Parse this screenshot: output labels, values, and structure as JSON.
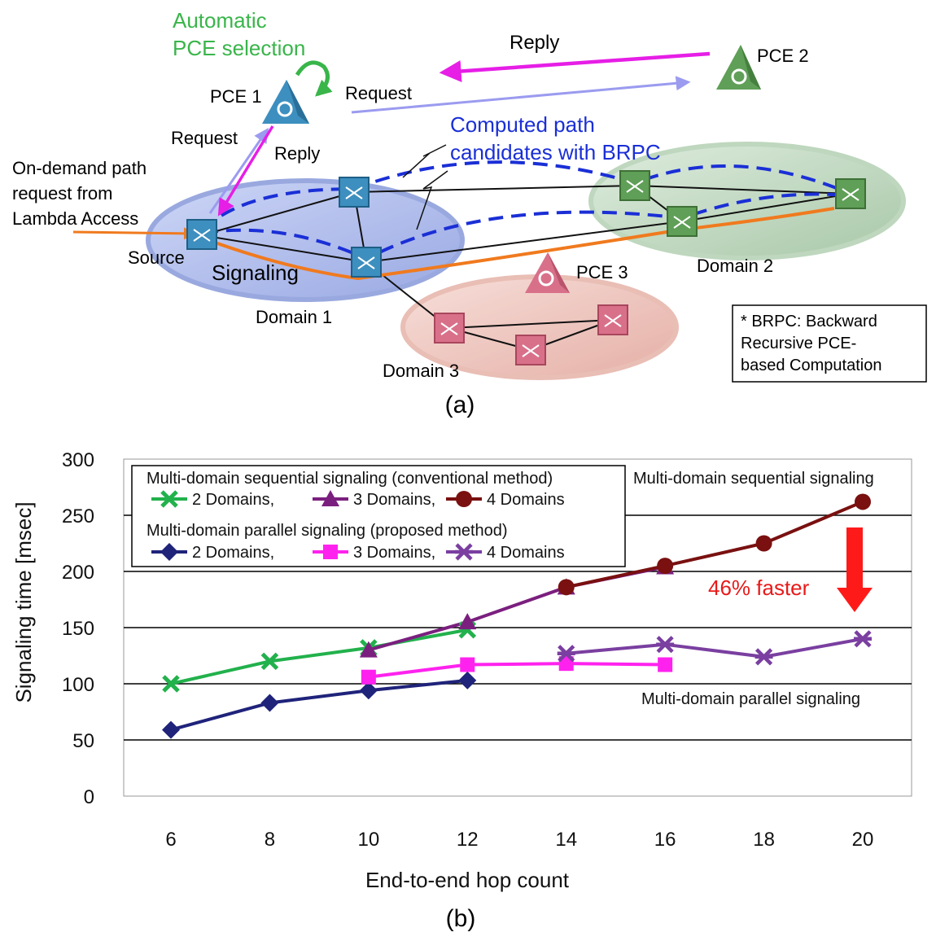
{
  "panel_a": {
    "caption": "(a)",
    "auto_selection": [
      "Automatic",
      "PCE selection"
    ],
    "pce1": "PCE 1",
    "pce2": "PCE 2",
    "pce3": "PCE 3",
    "reply_top": "Reply",
    "request_top": "Request",
    "request_left": "Request",
    "reply_left": "Reply",
    "computed": [
      "Computed path",
      "candidates with BRPC"
    ],
    "on_demand": [
      "On-demand path",
      "request from",
      "Lambda Access"
    ],
    "source": "Source",
    "signaling": "Signaling",
    "domain1": "Domain 1",
    "domain2": "Domain 2",
    "domain3": "Domain 3",
    "note": [
      "* BRPC: Backward",
      "Recursive PCE-",
      "based Computation"
    ],
    "colors": {
      "domain1": "#a9b7ea",
      "domain2": "#b6d2b6",
      "domain3": "#eab7b0",
      "pce1": "#3d8fbf",
      "pce2": "#5f9f57",
      "pce3": "#d9708a",
      "auto": "#39b54a",
      "reply": "#e61ee6",
      "request": "#9b9bf0",
      "candidate": "#1a2fd6",
      "signal_path": "#f07a1e"
    }
  },
  "panel_b": {
    "caption": "(b)",
    "annotations": {
      "sequential": "Multi-domain sequential signaling",
      "parallel": "Multi-domain parallel signaling",
      "faster": "46% faster"
    },
    "legend": {
      "group1": "Multi-domain sequential signaling (conventional method)",
      "group2": "Multi-domain parallel signaling (proposed method)",
      "entries_seq": [
        "2 Domains,",
        "3 Domains,",
        "4 Domains"
      ],
      "entries_par": [
        "2 Domains,",
        "3 Domains,",
        "4 Domains"
      ]
    }
  },
  "chart_data": {
    "type": "line",
    "xlabel": "End-to-end hop count",
    "ylabel": "Signaling time [msec]",
    "xticks": [
      6,
      8,
      10,
      12,
      14,
      16,
      18,
      20
    ],
    "ylim": [
      0,
      300
    ],
    "yticks": [
      0,
      50,
      100,
      150,
      200,
      250,
      300
    ],
    "grid": "horizontal",
    "series": [
      {
        "name": "2 Domains,",
        "group": "sequential",
        "color": "#22b14c",
        "marker": "x",
        "x": [
          6,
          8,
          10,
          12
        ],
        "values": [
          100,
          120,
          132,
          148
        ]
      },
      {
        "name": "3 Domains,",
        "group": "sequential",
        "color": "#7b1f7f",
        "marker": "triangle",
        "x": [
          10,
          12,
          14,
          16
        ],
        "values": [
          130,
          155,
          186,
          204
        ]
      },
      {
        "name": "4 Domains",
        "group": "sequential",
        "color": "#7a1010",
        "marker": "circle",
        "x": [
          14,
          16,
          18,
          20
        ],
        "values": [
          186,
          205,
          225,
          262
        ]
      },
      {
        "name": "2 Domains,",
        "group": "parallel",
        "color": "#1f237a",
        "marker": "diamond",
        "x": [
          6,
          8,
          10,
          12
        ],
        "values": [
          59,
          83,
          94,
          103
        ]
      },
      {
        "name": "3 Domains,",
        "group": "parallel",
        "color": "#ff22ee",
        "marker": "square",
        "x": [
          10,
          12,
          14,
          16
        ],
        "values": [
          106,
          117,
          118,
          117
        ]
      },
      {
        "name": "4 Domains",
        "group": "parallel",
        "color": "#7a3fa0",
        "marker": "star",
        "x": [
          14,
          16,
          18,
          20
        ],
        "values": [
          127,
          135,
          124,
          140
        ]
      }
    ]
  }
}
